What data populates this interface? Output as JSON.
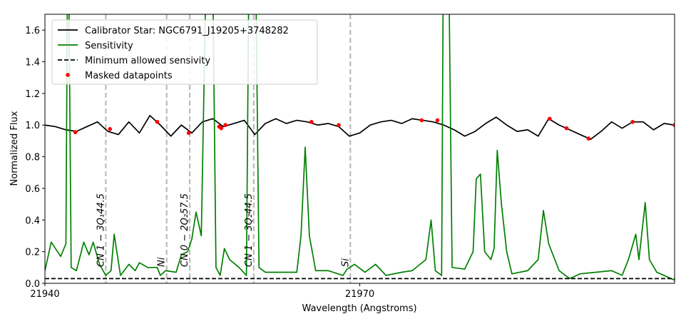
{
  "chart_data": {
    "type": "line",
    "xlabel": "Wavelength (Angstroms)",
    "ylabel": "Normalized Flux",
    "xlim": [
      21940,
      22000
    ],
    "xticks": [
      21940,
      21970
    ],
    "ylim": [
      0,
      1.7
    ],
    "yticks": [
      {
        "value": 0,
        "label": "0.0"
      },
      {
        "value": 0.2,
        "label": "0.2"
      },
      {
        "value": 0.4,
        "label": "0.4"
      },
      {
        "value": 0.6,
        "label": "0.6"
      },
      {
        "value": 0.8,
        "label": "0.8"
      },
      {
        "value": 1.0,
        "label": "1.0"
      },
      {
        "value": 1.2,
        "label": "1.2"
      },
      {
        "value": 1.4,
        "label": "1.4"
      },
      {
        "value": 1.6,
        "label": "1.6"
      }
    ],
    "legend": "upper left",
    "series": [
      {
        "name": "Calibrator Star: NGC6791_J19205+3748282",
        "color": "#000000",
        "style": "solid",
        "x": [
          21940,
          21941,
          21942,
          21943,
          21944,
          21945,
          21946,
          21947,
          21948,
          21949,
          21950,
          21951,
          21952,
          21953,
          21954,
          21955,
          21956,
          21957,
          21958,
          21959,
          21960,
          21961,
          21962,
          21963,
          21964,
          21965,
          21966,
          21967,
          21968,
          21969,
          21970,
          21971,
          21972,
          21973,
          21974,
          21975,
          21976,
          21977,
          21978,
          21979,
          21980,
          21981,
          21982,
          21983,
          21984,
          21985,
          21986,
          21987,
          21988,
          21989,
          21990,
          21991,
          21992,
          21993,
          21994,
          21995,
          21996,
          21997,
          21998,
          21999,
          22000
        ],
        "values": [
          1.0,
          0.99,
          0.97,
          0.96,
          0.99,
          1.02,
          0.96,
          0.94,
          1.02,
          0.95,
          1.06,
          1.0,
          0.93,
          1.0,
          0.95,
          1.02,
          1.04,
          0.99,
          1.01,
          1.03,
          0.94,
          1.01,
          1.04,
          1.01,
          1.03,
          1.02,
          1.0,
          1.01,
          0.99,
          0.93,
          0.95,
          1.0,
          1.02,
          1.03,
          1.01,
          1.04,
          1.03,
          1.02,
          1.0,
          0.97,
          0.93,
          0.96,
          1.01,
          1.05,
          1.0,
          0.96,
          0.97,
          0.93,
          1.04,
          1.0,
          0.97,
          0.94,
          0.91,
          0.96,
          1.02,
          0.98,
          1.02,
          1.02,
          0.97,
          1.01,
          1.0
        ]
      },
      {
        "name": "Sensitivity",
        "color": "#008000",
        "style": "solid",
        "x": [
          21940,
          21940.6,
          21941.5,
          21942,
          21942.2,
          21942.5,
          21943,
          21943.7,
          21944.2,
          21944.6,
          21945.2,
          21945.8,
          21946.3,
          21946.6,
          21947.2,
          21948,
          21948.6,
          21949,
          21949.8,
          21950.7,
          21951,
          21951.5,
          21952.5,
          21953,
          21953.6,
          21954,
          21954.4,
          21954.9,
          21955.5,
          21955.9,
          21956.3,
          21956.7,
          21957.1,
          21957.6,
          21958.5,
          21959.2,
          21959.5,
          21960,
          21960.4,
          21961,
          21963,
          21964,
          21964.4,
          21964.8,
          21965.2,
          21965.8,
          21967,
          21968.4,
          21968.8,
          21969.5,
          21970.5,
          21971.5,
          21972.5,
          21974,
          21975,
          21976.3,
          21976.8,
          21977.2,
          21977.8,
          21978,
          21978.4,
          21978.8,
          21980,
          21980.8,
          21981.1,
          21981.5,
          21981.9,
          21982.5,
          21982.8,
          21983.1,
          21983.5,
          21984,
          21984.5,
          21986,
          21987,
          21987.5,
          21988,
          21989,
          21990,
          21991,
          21992.5,
          21994,
          21995,
          21995.6,
          21996.3,
          21996.6,
          21997.2,
          21997.6,
          21998.3,
          21999,
          22000
        ],
        "values": [
          0.08,
          0.26,
          0.17,
          0.25,
          2.5,
          0.1,
          0.08,
          0.26,
          0.18,
          0.26,
          0.12,
          0.05,
          0.08,
          0.31,
          0.05,
          0.12,
          0.08,
          0.13,
          0.1,
          0.1,
          0.05,
          0.08,
          0.07,
          0.18,
          0.2,
          0.28,
          0.45,
          0.3,
          2.5,
          2.5,
          0.1,
          0.05,
          0.22,
          0.15,
          0.1,
          0.05,
          2.5,
          2.5,
          0.1,
          0.07,
          0.07,
          0.07,
          0.3,
          0.86,
          0.3,
          0.08,
          0.08,
          0.05,
          0.09,
          0.12,
          0.07,
          0.12,
          0.05,
          0.07,
          0.08,
          0.15,
          0.4,
          0.08,
          0.05,
          2.5,
          2.5,
          0.1,
          0.09,
          0.2,
          0.66,
          0.69,
          0.2,
          0.15,
          0.22,
          0.84,
          0.5,
          0.2,
          0.06,
          0.08,
          0.15,
          0.46,
          0.25,
          0.08,
          0.03,
          0.06,
          0.07,
          0.08,
          0.05,
          0.15,
          0.31,
          0.15,
          0.51,
          0.15,
          0.07,
          0.05,
          0.02
        ]
      },
      {
        "name": "Minimum allowed sensivity",
        "color": "#000000",
        "style": "dashed",
        "x": [
          21940,
          22000
        ],
        "values": [
          0.03,
          0.03
        ]
      },
      {
        "name": "Masked datapoints",
        "color": "#ff0000",
        "style": "points",
        "x": [
          21942.9,
          21946.2,
          21950.7,
          21953.7,
          21956.6,
          21956.8,
          21957.2,
          21965.4,
          21968.0,
          21975.9,
          21977.4,
          21988.1,
          21989.7,
          21991.8,
          21996.0,
          22000
        ],
        "values": [
          0.955,
          0.975,
          1.02,
          0.95,
          0.99,
          0.98,
          1.0,
          1.02,
          1.0,
          1.03,
          1.03,
          1.04,
          0.98,
          0.915,
          1.02,
          1.0
        ]
      }
    ],
    "lines": [
      {
        "x": 21945.8,
        "label": "CN 1 − 3Q₁44.5"
      },
      {
        "x": 21951.6,
        "label": "Ni"
      },
      {
        "x": 21953.8,
        "label": "CN 0 − 2Q₂57.5"
      },
      {
        "x": 21959.9,
        "label": "CN 1 − 3Q₂44.5"
      },
      {
        "x": 21969.1,
        "label": "Si"
      }
    ],
    "lines_color": "#bbbbbb"
  }
}
